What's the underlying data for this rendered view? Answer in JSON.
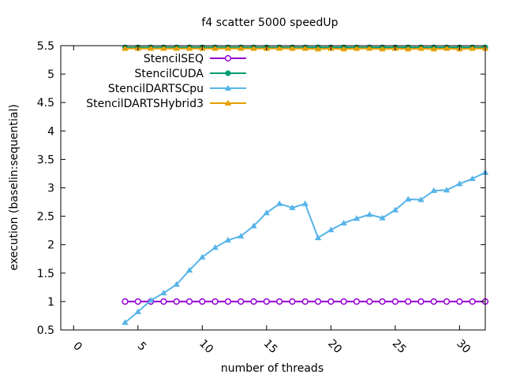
{
  "chart_data": {
    "type": "line",
    "title": "f4 scatter 5000 speedUp",
    "xlabel": "number of threads",
    "ylabel": "execution (baselin:sequential)",
    "xlim": [
      -1,
      32
    ],
    "ylim": [
      0.5,
      5.5
    ],
    "xticks": [
      0,
      5,
      10,
      15,
      20,
      25,
      30
    ],
    "yticks": [
      0.5,
      1,
      1.5,
      2,
      2.5,
      3,
      3.5,
      4,
      4.5,
      5,
      5.5
    ],
    "ytick_labels": [
      "0.5",
      "1",
      "1.5",
      "2",
      "2.5",
      "3",
      "3.5",
      "4",
      "4.5",
      "5",
      "5.5"
    ],
    "grid": false,
    "legend_position": "top-left",
    "x": [
      4,
      5,
      6,
      7,
      8,
      9,
      10,
      11,
      12,
      13,
      14,
      15,
      16,
      17,
      18,
      19,
      20,
      21,
      22,
      23,
      24,
      25,
      26,
      27,
      28,
      29,
      30,
      31,
      32
    ],
    "series": [
      {
        "name": "StencilSEQ",
        "color": "#9400d3",
        "marker": "circle-open",
        "values": [
          1,
          1,
          1,
          1,
          1,
          1,
          1,
          1,
          1,
          1,
          1,
          1,
          1,
          1,
          1,
          1,
          1,
          1,
          1,
          1,
          1,
          1,
          1,
          1,
          1,
          1,
          1,
          1,
          1
        ]
      },
      {
        "name": "StencilCUDA",
        "color": "#009e73",
        "marker": "circle",
        "values": [
          5.47,
          5.47,
          5.47,
          5.47,
          5.47,
          5.47,
          5.47,
          5.47,
          5.47,
          5.47,
          5.47,
          5.47,
          5.47,
          5.47,
          5.47,
          5.47,
          5.47,
          5.47,
          5.47,
          5.47,
          5.47,
          5.47,
          5.47,
          5.47,
          5.47,
          5.47,
          5.47,
          5.47,
          5.47
        ]
      },
      {
        "name": "StencilDARTSCpu",
        "color": "#56b4e9",
        "marker": "triangle",
        "values": [
          0.63,
          0.82,
          1.02,
          1.15,
          1.3,
          1.55,
          1.78,
          1.95,
          2.08,
          2.15,
          2.33,
          2.56,
          2.72,
          2.65,
          2.72,
          2.12,
          2.26,
          2.38,
          2.46,
          2.53,
          2.47,
          2.61,
          2.8,
          2.79,
          2.95,
          2.96,
          3.07,
          3.16,
          3.27
        ]
      },
      {
        "name": "StencilDARTSHybrid3",
        "color": "#e69f00",
        "marker": "triangle",
        "values": [
          5.45,
          5.45,
          5.45,
          5.45,
          5.45,
          5.45,
          5.45,
          5.45,
          5.45,
          5.45,
          5.45,
          5.45,
          5.45,
          5.45,
          5.45,
          5.44,
          5.45,
          5.44,
          5.45,
          5.45,
          5.44,
          5.45,
          5.44,
          5.45,
          5.44,
          5.45,
          5.44,
          5.45,
          5.45
        ]
      }
    ]
  }
}
